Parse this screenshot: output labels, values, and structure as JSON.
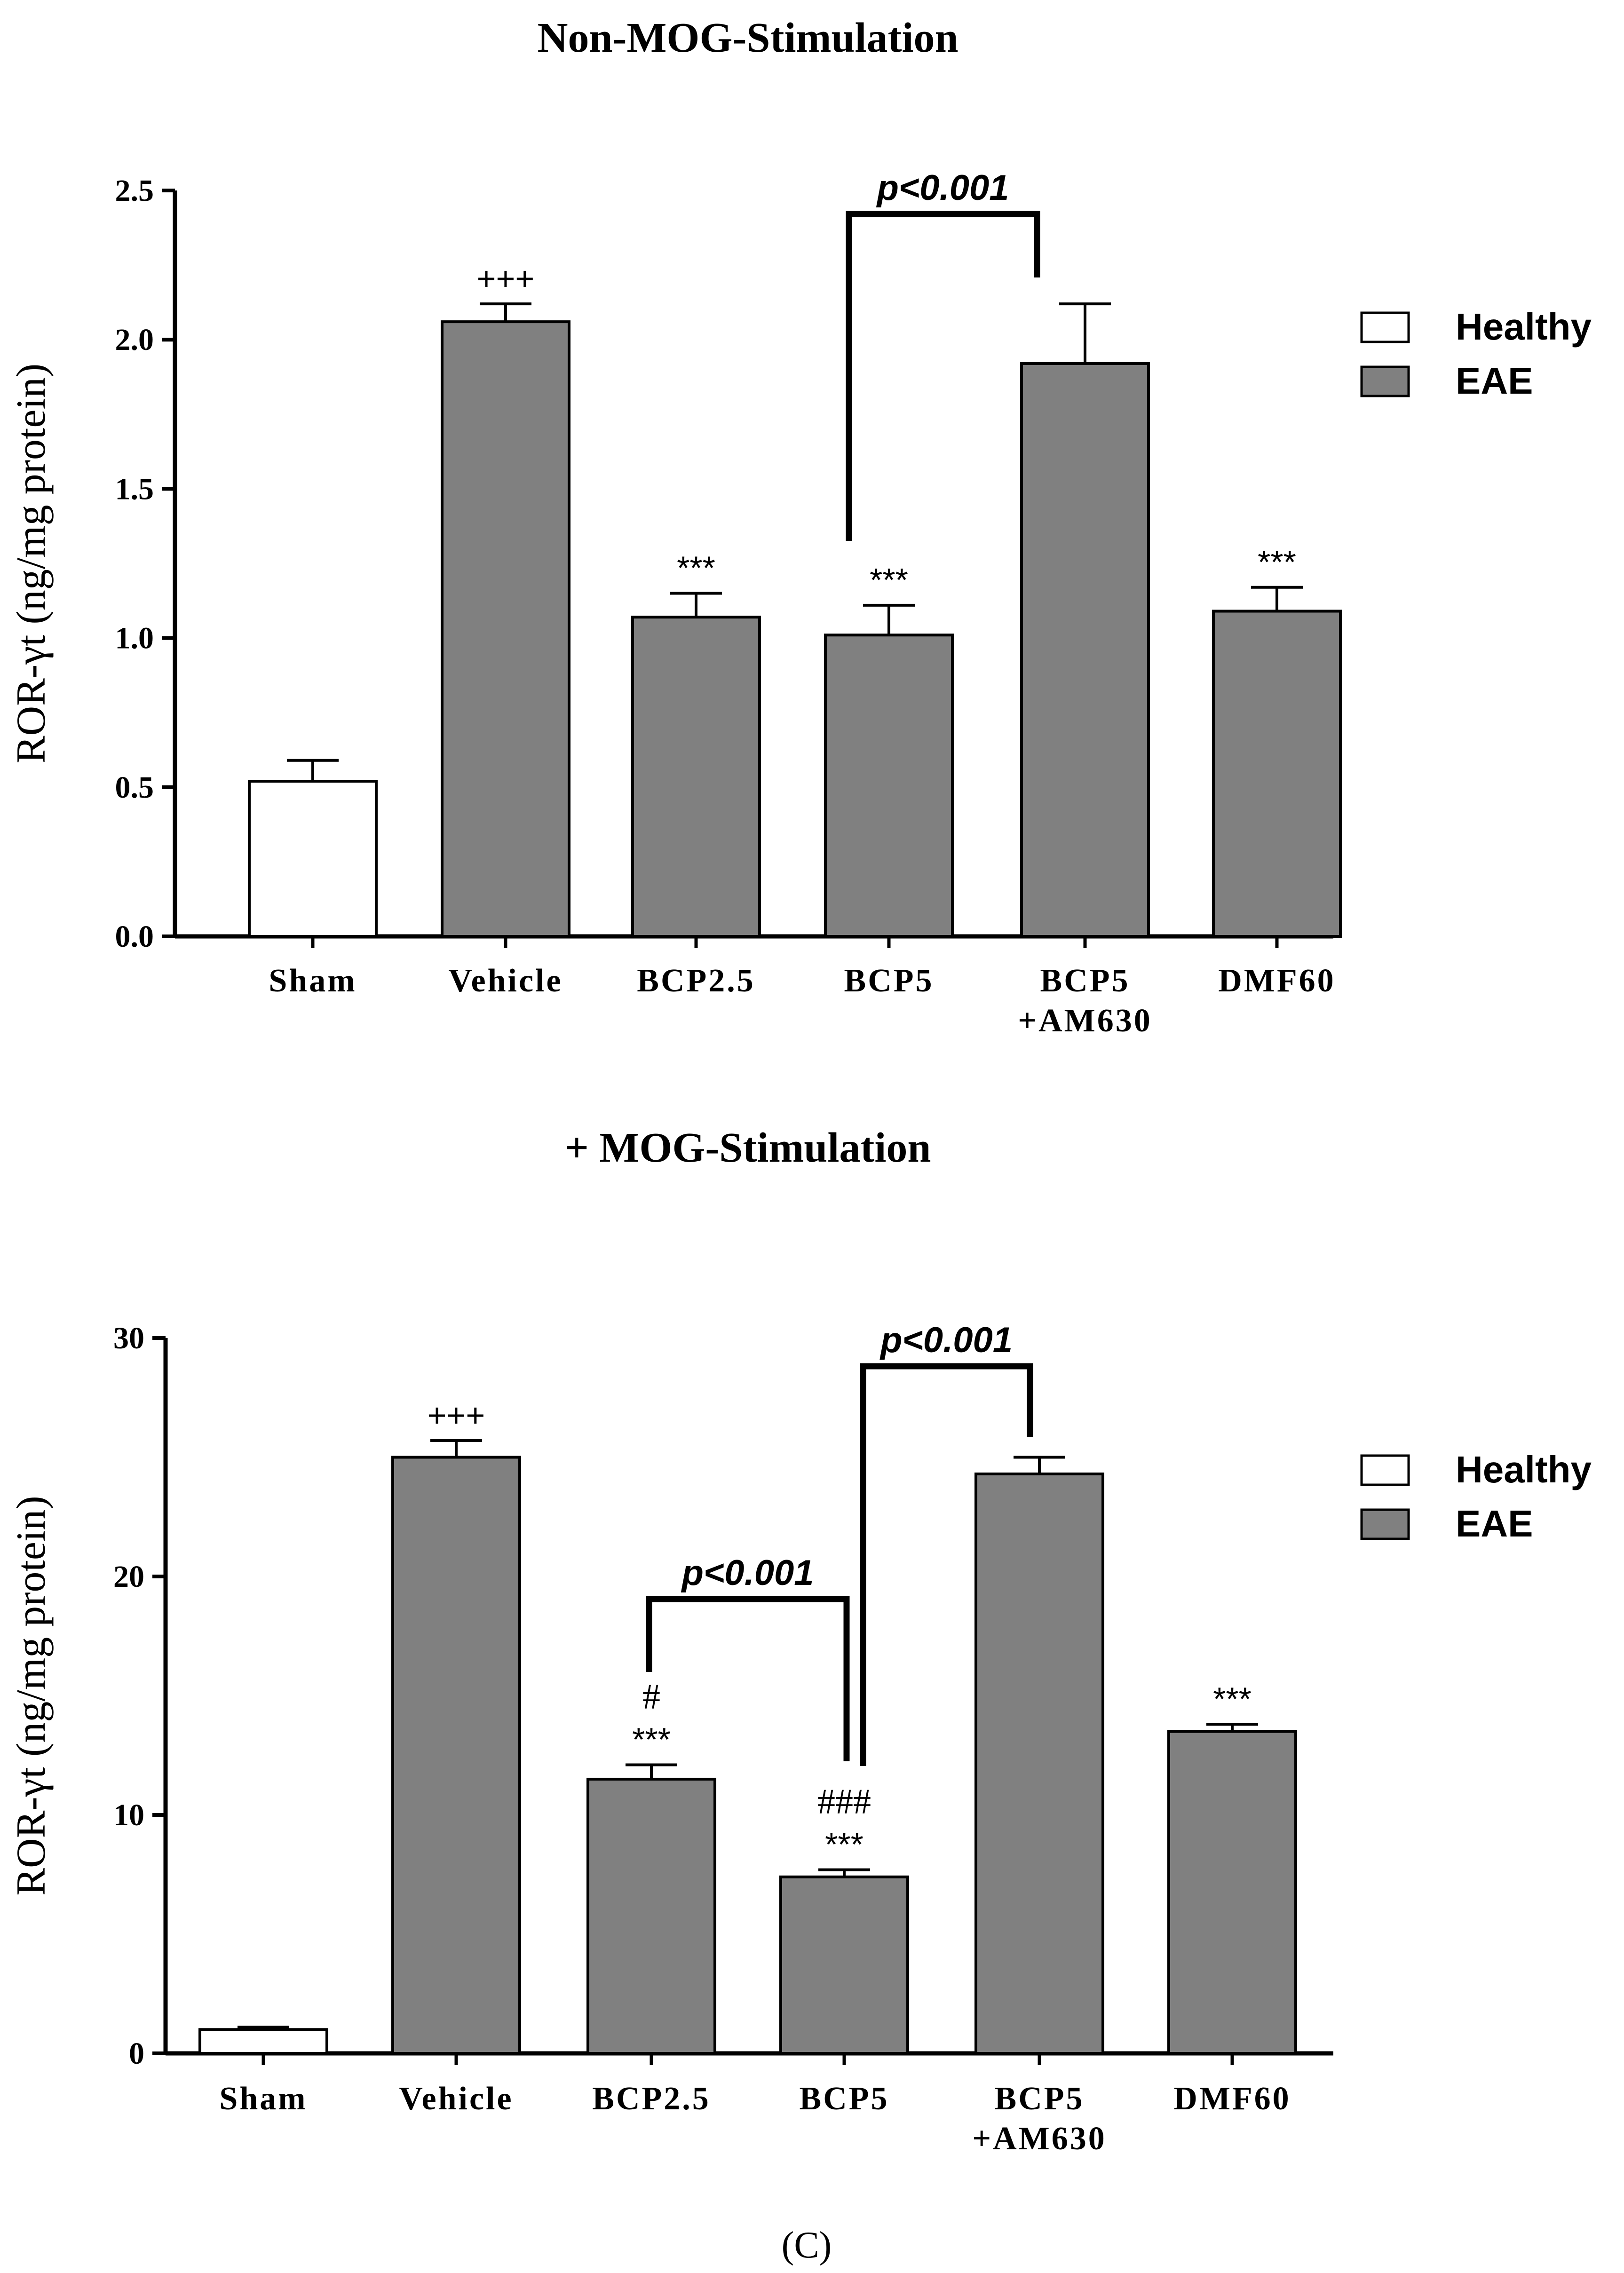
{
  "figure_label": "(C)",
  "chart_data": [
    {
      "type": "bar",
      "title": "Non-MOG-Stimulation",
      "ylabel": "ROR-γt (ng/mg protein)",
      "xlabel": "",
      "ylim": [
        0,
        2.5
      ],
      "yticks": [
        "0.0",
        "0.5",
        "1.0",
        "1.5",
        "2.0",
        "2.5"
      ],
      "categories": [
        [
          "Sham"
        ],
        [
          "Vehicle"
        ],
        [
          "BCP2.5"
        ],
        [
          "BCP5"
        ],
        [
          "BCP5",
          "+AM630"
        ],
        [
          "DMF60"
        ]
      ],
      "values": [
        0.52,
        2.06,
        1.07,
        1.01,
        1.92,
        1.09
      ],
      "errors": [
        0.07,
        0.06,
        0.08,
        0.1,
        0.2,
        0.08
      ],
      "groups": [
        "Healthy",
        "EAE",
        "EAE",
        "EAE",
        "EAE",
        "EAE"
      ],
      "annotations": [
        [
          "",
          ""
        ],
        [
          "+++",
          ""
        ],
        [
          "***",
          ""
        ],
        [
          "***",
          ""
        ],
        [
          "",
          ""
        ],
        [
          "***",
          ""
        ]
      ],
      "brackets": [
        {
          "from": 3,
          "to": 4,
          "label": "p<0.001"
        }
      ],
      "legend": [
        {
          "label": "Healthy",
          "color": "#ffffff"
        },
        {
          "label": "EAE",
          "color": "#808080"
        }
      ]
    },
    {
      "type": "bar",
      "title": "+ MOG-Stimulation",
      "ylabel": "ROR-γt (ng/mg protein)",
      "xlabel": "",
      "ylim": [
        0,
        30
      ],
      "yticks": [
        "0",
        "10",
        "20",
        "30"
      ],
      "categories": [
        [
          "Sham"
        ],
        [
          "Vehicle"
        ],
        [
          "BCP2.5"
        ],
        [
          "BCP5"
        ],
        [
          "BCP5",
          "+AM630"
        ],
        [
          "DMF60"
        ]
      ],
      "values": [
        1.0,
        25.0,
        11.5,
        7.4,
        24.3,
        13.5
      ],
      "errors": [
        0.1,
        0.7,
        0.6,
        0.3,
        0.7,
        0.3
      ],
      "groups": [
        "Healthy",
        "EAE",
        "EAE",
        "EAE",
        "EAE",
        "EAE"
      ],
      "annotations": [
        [
          "",
          ""
        ],
        [
          "+++",
          ""
        ],
        [
          "***",
          "#"
        ],
        [
          "***",
          "###"
        ],
        [
          "",
          ""
        ],
        [
          "***",
          ""
        ]
      ],
      "brackets": [
        {
          "from": 2,
          "to": 3,
          "label": "p<0.001"
        },
        {
          "from": 3,
          "to": 4,
          "label": "p<0.001"
        }
      ],
      "legend": [
        {
          "label": "Healthy",
          "color": "#ffffff"
        },
        {
          "label": "EAE",
          "color": "#808080"
        }
      ]
    }
  ]
}
